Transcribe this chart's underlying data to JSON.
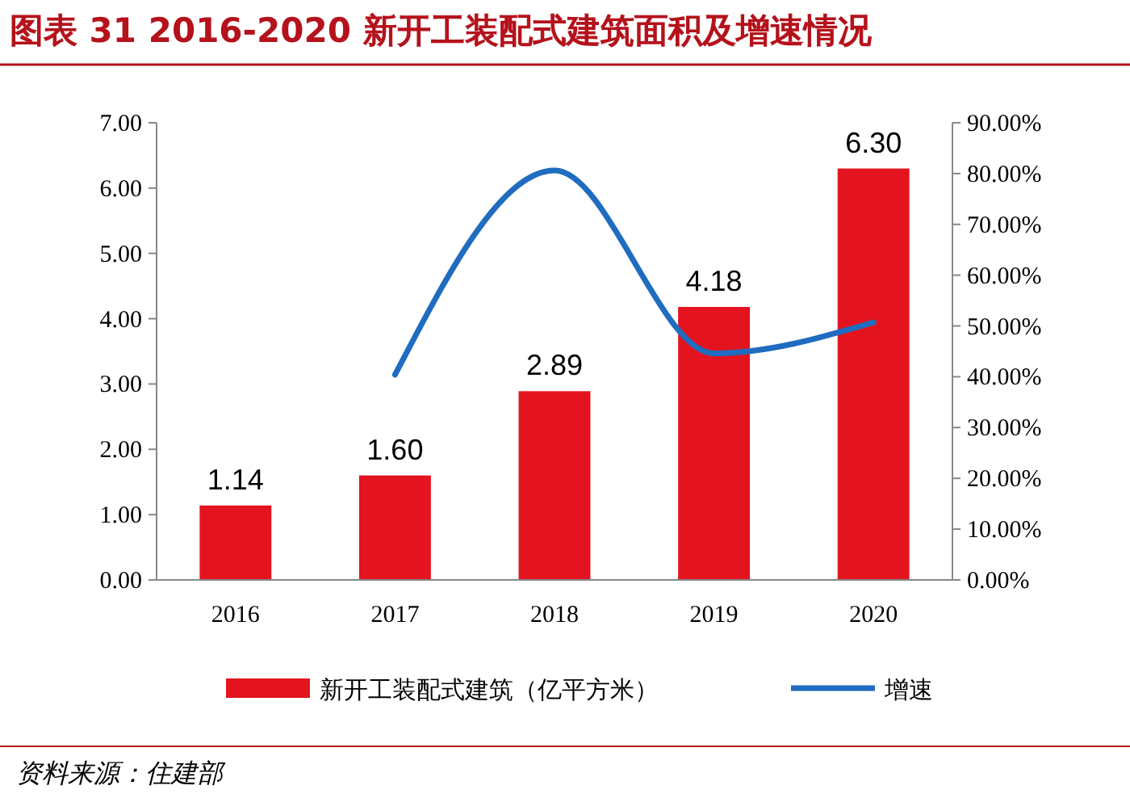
{
  "chart_data": {
    "type": "bar",
    "title": "图表 31  2016-2020 新开工装配式建筑面积及增速情况",
    "categories": [
      "2016",
      "2017",
      "2018",
      "2019",
      "2020"
    ],
    "series": [
      {
        "name": "新开工装配式建筑（亿平方米）",
        "color": "#e3141f",
        "values": [
          1.14,
          1.6,
          2.89,
          4.18,
          6.3
        ],
        "value_labels": [
          "1.14",
          "1.60",
          "2.89",
          "4.18",
          "6.30"
        ]
      },
      {
        "name": "增速",
        "type": "line",
        "color": "#1f6cc0",
        "axis": "y2",
        "values": [
          null,
          40.4,
          80.6,
          44.6,
          50.7
        ]
      }
    ],
    "ylim": [
      0,
      7
    ],
    "yticks": [
      {
        "value": 0,
        "label": "0.00"
      },
      {
        "value": 1,
        "label": "1.00"
      },
      {
        "value": 2,
        "label": "2.00"
      },
      {
        "value": 3,
        "label": "3.00"
      },
      {
        "value": 4,
        "label": "4.00"
      },
      {
        "value": 5,
        "label": "5.00"
      },
      {
        "value": 6,
        "label": "6.00"
      },
      {
        "value": 7,
        "label": "7.00"
      }
    ],
    "y2lim": [
      0,
      90
    ],
    "y2ticks": [
      {
        "value": 0,
        "label": "0.00%"
      },
      {
        "value": 10,
        "label": "10.00%"
      },
      {
        "value": 20,
        "label": "20.00%"
      },
      {
        "value": 30,
        "label": "30.00%"
      },
      {
        "value": 40,
        "label": "40.00%"
      },
      {
        "value": 50,
        "label": "50.00%"
      },
      {
        "value": 60,
        "label": "60.00%"
      },
      {
        "value": 70,
        "label": "70.00%"
      },
      {
        "value": 80,
        "label": "80.00%"
      },
      {
        "value": 90,
        "label": "90.00%"
      }
    ],
    "legend": "bottom",
    "grid": false,
    "annotations": [
      "资料来源：住建部"
    ]
  }
}
